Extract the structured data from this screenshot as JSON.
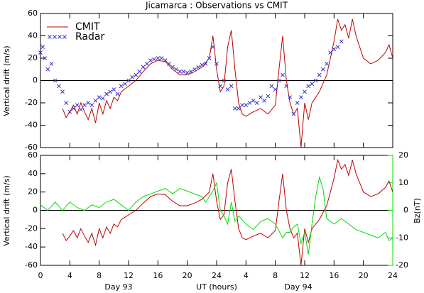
{
  "chart_data": [
    {
      "type": "line",
      "title": "Jicamarca : Observations vs CMIT",
      "ylabel": "Vertical drift (m/s)",
      "xlim": [
        0,
        48
      ],
      "xticks": [
        0,
        4,
        8,
        12,
        16,
        20,
        24,
        28,
        32,
        36,
        40,
        44,
        48
      ],
      "ylim": [
        -60,
        60
      ],
      "yticks": [
        60,
        40,
        20,
        0,
        -20,
        -40,
        -60
      ],
      "legend": "upper left",
      "series": [
        {
          "name": "CMIT",
          "type": "line",
          "color": "#c00000",
          "x": [
            3,
            3.5,
            4,
            4.5,
            5,
            5.5,
            6,
            6.5,
            7,
            7.5,
            8,
            8.5,
            9,
            9.5,
            10,
            10.5,
            11,
            12,
            13,
            14,
            15,
            16,
            17,
            18,
            19,
            20,
            21,
            22,
            23,
            23.5,
            24,
            24.5,
            25,
            25.5,
            26,
            26.5,
            27,
            27.5,
            28,
            29,
            30,
            31,
            32,
            32.5,
            33,
            33.5,
            34,
            34.5,
            35,
            35.5,
            36,
            36.5,
            37,
            38,
            39,
            39.5,
            40,
            40.5,
            41,
            41.5,
            42,
            42.5,
            43,
            44,
            45,
            46,
            47,
            47.5,
            48
          ],
          "values": [
            -25,
            -33,
            -28,
            -22,
            -30,
            -20,
            -28,
            -35,
            -25,
            -38,
            -20,
            -30,
            -18,
            -25,
            -15,
            -18,
            -10,
            -5,
            0,
            8,
            15,
            18,
            17,
            10,
            5,
            5,
            8,
            12,
            20,
            40,
            10,
            -10,
            -5,
            30,
            45,
            10,
            -20,
            -30,
            -32,
            -28,
            -25,
            -30,
            -22,
            10,
            40,
            0,
            -20,
            -30,
            -25,
            -60,
            -20,
            -35,
            -20,
            -10,
            5,
            20,
            35,
            55,
            45,
            50,
            38,
            55,
            40,
            20,
            15,
            18,
            25,
            32,
            20
          ]
        },
        {
          "name": "Radar",
          "type": "scatter",
          "color": "#3333cc",
          "x": [
            0,
            0.3,
            0.6,
            1,
            1.5,
            2,
            2.5,
            3,
            3.5,
            4,
            4.5,
            5,
            5.5,
            6,
            6.5,
            7,
            7.5,
            8,
            8.5,
            9,
            9.5,
            10,
            10.5,
            11,
            11.5,
            12,
            12.5,
            13,
            13.5,
            14,
            14.5,
            15,
            15.5,
            16,
            16.5,
            17,
            17.5,
            18,
            18.5,
            19,
            19.5,
            20,
            20.5,
            21,
            21.5,
            22,
            22.5,
            23,
            23.5,
            24,
            24.5,
            25,
            25.5,
            26,
            26.5,
            27,
            27.5,
            28,
            28.5,
            29,
            29.5,
            30,
            30.5,
            31,
            31.5,
            32,
            32.5,
            33,
            33.5,
            34,
            34.5,
            35,
            35.5,
            36,
            36.5,
            37,
            37.5,
            38,
            38.5,
            39,
            39.5,
            40,
            40.5,
            41
          ],
          "values": [
            25,
            30,
            20,
            10,
            15,
            0,
            -5,
            -10,
            -20,
            -28,
            -25,
            -22,
            -26,
            -22,
            -20,
            -22,
            -18,
            -15,
            -16,
            -12,
            -10,
            -8,
            -12,
            -5,
            -3,
            0,
            3,
            5,
            8,
            12,
            15,
            18,
            19,
            20,
            20,
            18,
            15,
            12,
            10,
            8,
            8,
            7,
            8,
            10,
            12,
            14,
            15,
            20,
            30,
            15,
            -5,
            0,
            -8,
            -5,
            -25,
            -25,
            -22,
            -22,
            -20,
            -18,
            -20,
            -15,
            -18,
            -14,
            -5,
            -8,
            0,
            5,
            -5,
            -15,
            -30,
            -20,
            -15,
            -10,
            -5,
            -3,
            0,
            5,
            10,
            15,
            25,
            28,
            30,
            35
          ]
        }
      ]
    },
    {
      "type": "line",
      "ylabel": "Vertical drift (m/s)",
      "xlabel": "UT (hours)",
      "annotations": [
        "Day 93",
        "Day 94"
      ],
      "y2label": "Bz(nT)",
      "y2color": "#00dd00",
      "xlim": [
        0,
        48
      ],
      "xticks": [
        0,
        4,
        8,
        12,
        16,
        20,
        24,
        {
          "value": 28,
          "label": "4"
        },
        {
          "value": 32,
          "label": "8"
        },
        {
          "value": 36,
          "label": "12"
        },
        {
          "value": 40,
          "label": "16"
        },
        {
          "value": 44,
          "label": "20"
        },
        {
          "value": 48,
          "label": "24"
        }
      ],
      "ylim": [
        -60,
        60
      ],
      "yticks": [
        60,
        40,
        20,
        0,
        -20,
        -40,
        -60
      ],
      "y2lim": [
        -20,
        20
      ],
      "y2ticks": [
        20,
        10,
        0,
        -10,
        -20
      ],
      "series": [
        {
          "type": "line",
          "color": "#c00000",
          "x": [
            3,
            3.5,
            4,
            4.5,
            5,
            5.5,
            6,
            6.5,
            7,
            7.5,
            8,
            8.5,
            9,
            9.5,
            10,
            10.5,
            11,
            12,
            13,
            14,
            15,
            16,
            17,
            18,
            19,
            20,
            21,
            22,
            23,
            23.5,
            24,
            24.5,
            25,
            25.5,
            26,
            26.5,
            27,
            27.5,
            28,
            29,
            30,
            31,
            32,
            32.5,
            33,
            33.5,
            34,
            34.5,
            35,
            35.5,
            36,
            36.5,
            37,
            38,
            39,
            39.5,
            40,
            40.5,
            41,
            41.5,
            42,
            42.5,
            43,
            44,
            45,
            46,
            47,
            47.5,
            48
          ],
          "values": [
            -25,
            -33,
            -28,
            -22,
            -30,
            -20,
            -28,
            -35,
            -25,
            -38,
            -20,
            -30,
            -18,
            -25,
            -15,
            -18,
            -10,
            -5,
            0,
            8,
            15,
            18,
            17,
            10,
            5,
            5,
            8,
            12,
            20,
            40,
            10,
            -10,
            -5,
            30,
            45,
            10,
            -20,
            -30,
            -32,
            -28,
            -25,
            -30,
            -22,
            10,
            40,
            0,
            -20,
            -30,
            -25,
            -60,
            -20,
            -35,
            -20,
            -10,
            5,
            20,
            35,
            55,
            45,
            50,
            38,
            55,
            40,
            20,
            15,
            18,
            25,
            32,
            20
          ]
        },
        {
          "type": "line",
          "color": "#00dd00",
          "axis": "y2",
          "x": [
            0,
            1,
            2,
            3,
            4,
            5,
            6,
            7,
            8,
            9,
            10,
            11,
            12,
            13,
            14,
            15,
            16,
            17,
            18,
            19,
            20,
            21,
            22,
            22.5,
            23,
            23.5,
            24,
            24.5,
            25,
            25.5,
            26,
            26.5,
            27,
            28,
            29,
            30,
            31,
            32,
            33,
            33.5,
            34,
            34.5,
            35,
            35.5,
            36,
            36.5,
            37,
            37.5,
            38,
            38.5,
            39,
            40,
            41,
            42,
            43,
            44,
            45,
            46,
            46.5,
            47,
            47.5,
            48
          ],
          "values": [
            2,
            0,
            3,
            0,
            3,
            1,
            0,
            2,
            1,
            3,
            4,
            2,
            0,
            3,
            5,
            6,
            7,
            8,
            6,
            8,
            7,
            6,
            5,
            3,
            5,
            7,
            10,
            0,
            -2,
            -5,
            3,
            -4,
            -2,
            -5,
            -7,
            -4,
            -3,
            -5,
            -10,
            -8,
            -8,
            -6,
            -5,
            -12,
            -8,
            -16,
            -5,
            5,
            12,
            8,
            -3,
            -5,
            -3,
            -5,
            -7,
            -8,
            -9,
            -10,
            -9,
            -8,
            -11,
            -10
          ]
        }
      ]
    }
  ]
}
